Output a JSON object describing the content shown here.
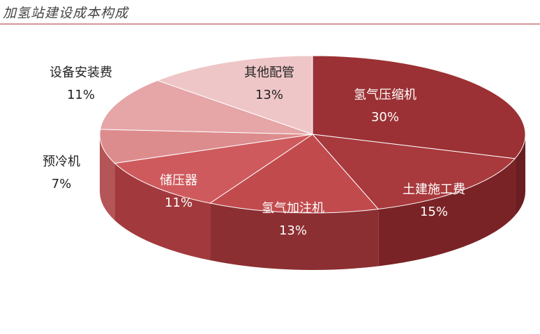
{
  "title": "加氢站建设成本构成",
  "chart_data": {
    "type": "pie",
    "title": "加氢站建设成本构成",
    "slices": [
      {
        "name": "氢气压缩机",
        "value": 30,
        "label": "30%",
        "color": "#9b3134",
        "side": "#6b1e21"
      },
      {
        "name": "土建施工费",
        "value": 15,
        "label": "15%",
        "color": "#a8393c",
        "side": "#7a2326"
      },
      {
        "name": "氢气加注机",
        "value": 13,
        "label": "13%",
        "color": "#c14a4d",
        "side": "#8c2f32"
      },
      {
        "name": "储压器",
        "value": 11,
        "label": "11%",
        "color": "#cf5a5d",
        "side": "#a23a3d"
      },
      {
        "name": "预冷机",
        "value": 7,
        "label": "7%",
        "color": "#dd8c8d",
        "side": "#b45558"
      },
      {
        "name": "设备安装费",
        "value": 11,
        "label": "11%",
        "color": "#e6a5a7",
        "side": "#c46e71"
      },
      {
        "name": "其他配管",
        "value": 13,
        "label": "13%",
        "color": "#efc6c7",
        "side": "#d28d8f"
      }
    ]
  }
}
